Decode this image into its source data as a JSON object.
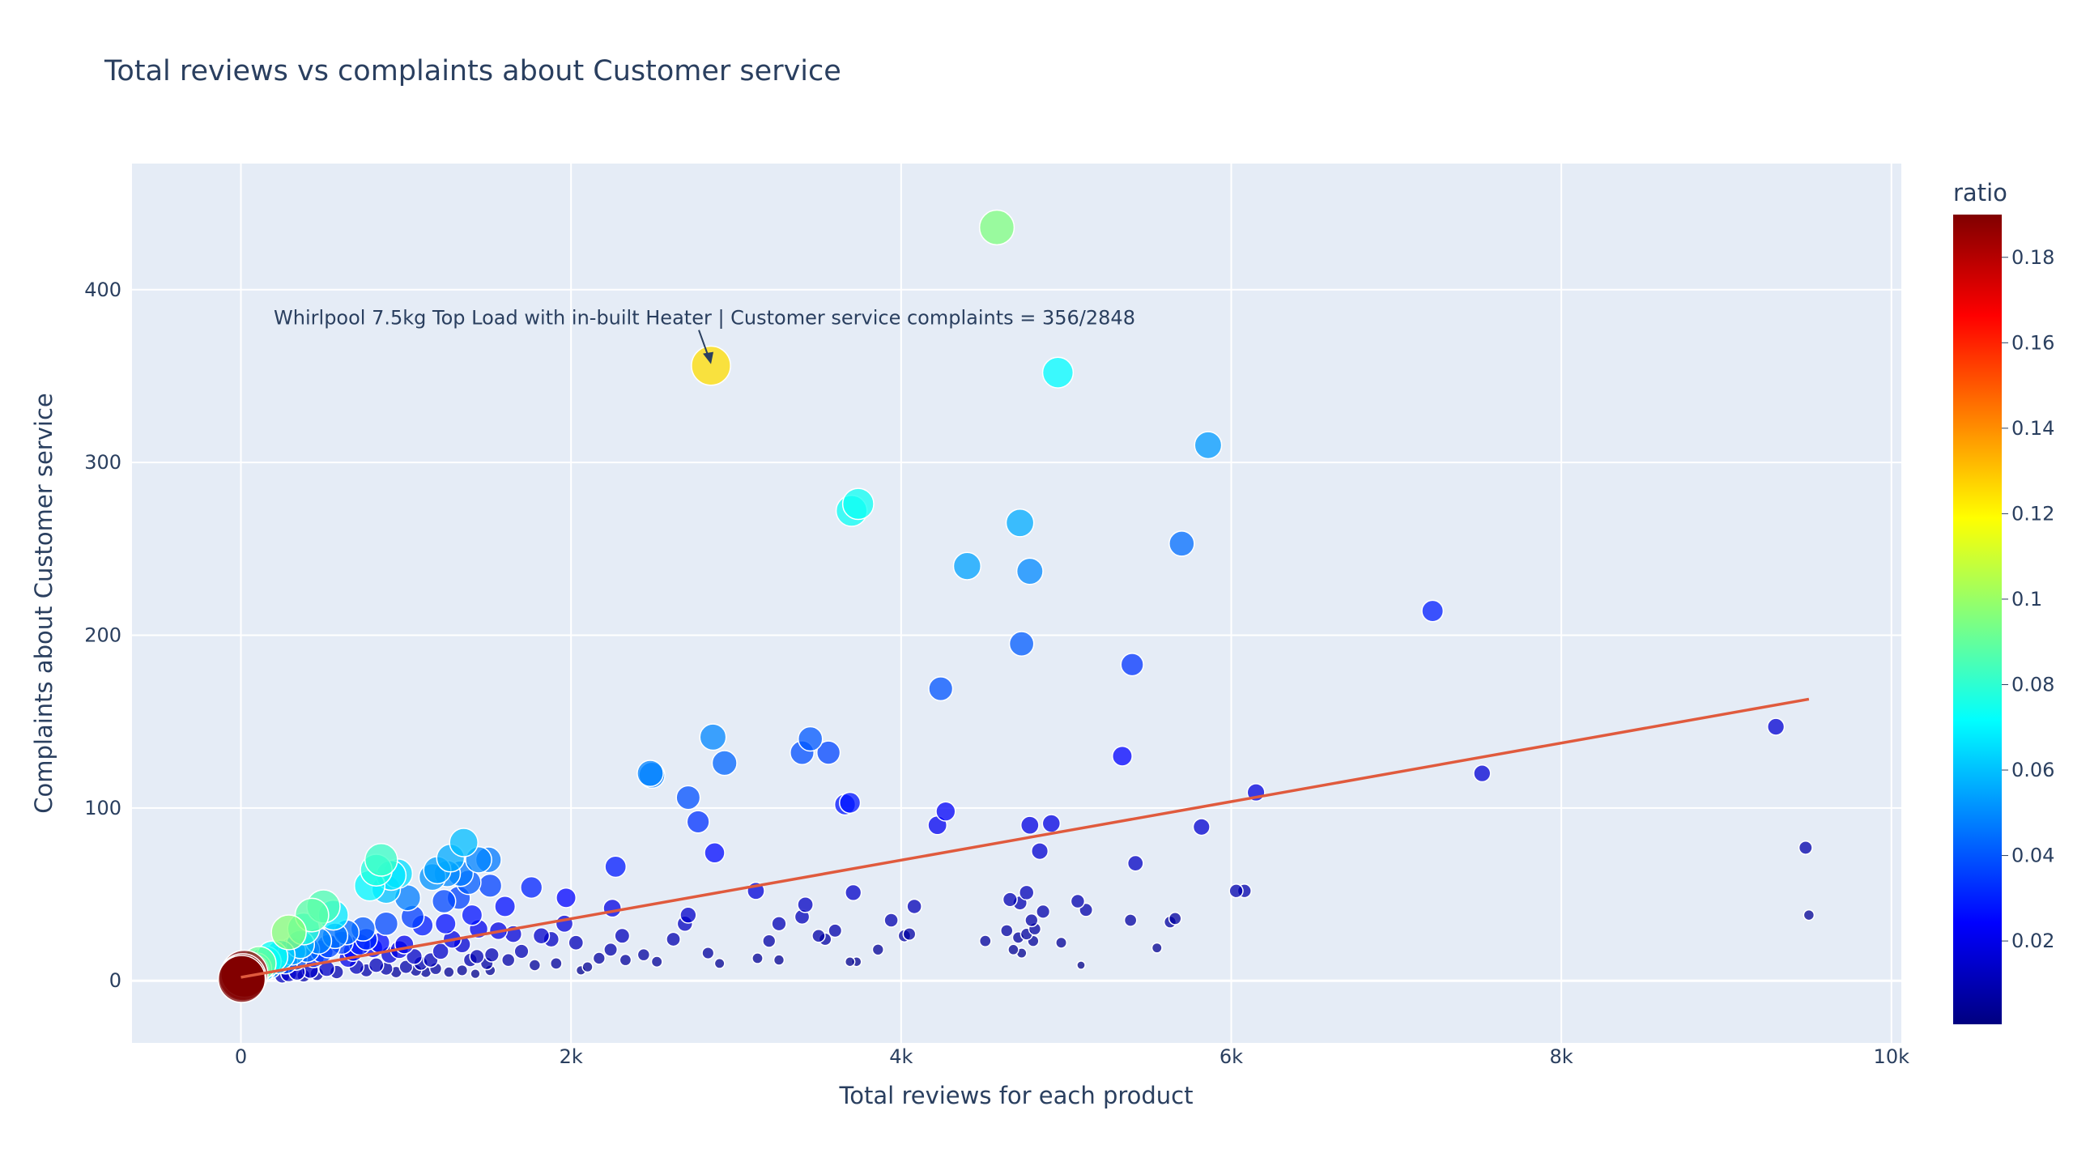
{
  "chart_data": {
    "type": "scatter",
    "title": "Total reviews vs complaints about Customer service",
    "xlabel": "Total reviews for each product",
    "ylabel": "Complaints about Customer service",
    "xlim": [
      -660,
      10060
    ],
    "ylim": [
      -36,
      473
    ],
    "x_ticks": [
      0,
      2000,
      4000,
      6000,
      8000,
      10000
    ],
    "x_tick_labels": [
      "0",
      "2k",
      "4k",
      "6k",
      "8k",
      "10k"
    ],
    "y_ticks": [
      0,
      100,
      200,
      300,
      400
    ],
    "y_tick_labels": [
      "0",
      "100",
      "200",
      "300",
      "400"
    ],
    "grid": true,
    "colorbar": {
      "title": "ratio",
      "range": [
        0.0005,
        0.19
      ],
      "ticks": [
        0.02,
        0.04,
        0.06,
        0.08,
        0.1,
        0.12,
        0.14,
        0.16,
        0.18
      ],
      "tick_labels": [
        "0.02",
        "0.04",
        "0.06",
        "0.08",
        "0.1",
        "0.12",
        "0.14",
        "0.16",
        "0.18"
      ],
      "colorscale": "Jet"
    },
    "annotation": {
      "text": "Whirlpool 7.5kg Top Load with in-built Heater | Customer service complaints = 356/2848",
      "x": 2848,
      "y": 356
    },
    "trendline": {
      "x": [
        0,
        9500
      ],
      "y": [
        2,
        163
      ],
      "color": "#e05a3d"
    },
    "points": [
      [
        4580,
        436
      ],
      [
        2848,
        356
      ],
      [
        4950,
        352
      ],
      [
        5860,
        310
      ],
      [
        3740,
        276
      ],
      [
        3700,
        272
      ],
      [
        5700,
        253
      ],
      [
        4720,
        265
      ],
      [
        4400,
        240
      ],
      [
        4780,
        237
      ],
      [
        7220,
        214
      ],
      [
        4730,
        195
      ],
      [
        5400,
        183
      ],
      [
        4240,
        169
      ],
      [
        2860,
        141
      ],
      [
        3450,
        140
      ],
      [
        3400,
        132
      ],
      [
        3560,
        132
      ],
      [
        2930,
        126
      ],
      [
        5340,
        130
      ],
      [
        2480,
        120
      ],
      [
        2490,
        119
      ],
      [
        2710,
        106
      ],
      [
        3690,
        103
      ],
      [
        3660,
        102
      ],
      [
        2770,
        92
      ],
      [
        4270,
        98
      ],
      [
        4220,
        90
      ],
      [
        4780,
        90
      ],
      [
        4910,
        91
      ],
      [
        9300,
        147
      ],
      [
        7520,
        120
      ],
      [
        6150,
        109
      ],
      [
        5820,
        89
      ],
      [
        2870,
        74
      ],
      [
        4840,
        75
      ],
      [
        5420,
        68
      ],
      [
        9480,
        77
      ],
      [
        2270,
        66
      ],
      [
        1970,
        48
      ],
      [
        1760,
        54
      ],
      [
        1600,
        43
      ],
      [
        1350,
        80
      ],
      [
        1270,
        71
      ],
      [
        1500,
        70
      ],
      [
        1440,
        70
      ],
      [
        1330,
        62
      ],
      [
        1250,
        62
      ],
      [
        1190,
        64
      ],
      [
        1160,
        60
      ],
      [
        1380,
        57
      ],
      [
        1510,
        55
      ],
      [
        1230,
        46
      ],
      [
        1320,
        48
      ],
      [
        850,
        70
      ],
      [
        820,
        64
      ],
      [
        950,
        62
      ],
      [
        910,
        61
      ],
      [
        780,
        55
      ],
      [
        880,
        53
      ],
      [
        1010,
        48
      ],
      [
        500,
        43
      ],
      [
        560,
        38
      ],
      [
        430,
        38
      ],
      [
        290,
        28
      ],
      [
        380,
        30
      ],
      [
        640,
        28
      ],
      [
        740,
        30
      ],
      [
        880,
        33
      ],
      [
        1040,
        37
      ],
      [
        1100,
        32
      ],
      [
        1240,
        33
      ],
      [
        1400,
        38
      ],
      [
        1440,
        30
      ],
      [
        1560,
        29
      ],
      [
        1650,
        27
      ],
      [
        1820,
        26
      ],
      [
        1880,
        24
      ],
      [
        1960,
        33
      ],
      [
        2030,
        22
      ],
      [
        2250,
        42
      ],
      [
        2310,
        26
      ],
      [
        2710,
        38
      ],
      [
        2690,
        33
      ],
      [
        3120,
        52
      ],
      [
        3260,
        33
      ],
      [
        3420,
        44
      ],
      [
        3400,
        37
      ],
      [
        3710,
        51
      ],
      [
        4080,
        43
      ],
      [
        3940,
        35
      ],
      [
        4660,
        47
      ],
      [
        4760,
        51
      ],
      [
        4720,
        45
      ],
      [
        4860,
        40
      ],
      [
        5070,
        46
      ],
      [
        5120,
        41
      ],
      [
        6030,
        52
      ],
      [
        6080,
        52
      ],
      [
        5390,
        35
      ],
      [
        5660,
        36
      ],
      [
        5630,
        34
      ],
      [
        4790,
        35
      ],
      [
        4810,
        30
      ],
      [
        4760,
        27
      ],
      [
        4640,
        29
      ],
      [
        4710,
        25
      ],
      [
        4800,
        23
      ],
      [
        4680,
        18
      ],
      [
        4730,
        16
      ],
      [
        4510,
        23
      ],
      [
        4050,
        27
      ],
      [
        4020,
        26
      ],
      [
        3600,
        29
      ],
      [
        3500,
        26
      ],
      [
        3540,
        24
      ],
      [
        3200,
        23
      ],
      [
        3130,
        13
      ],
      [
        2620,
        24
      ],
      [
        2520,
        11
      ],
      [
        2440,
        15
      ],
      [
        2330,
        12
      ],
      [
        2240,
        18
      ],
      [
        2170,
        13
      ],
      [
        2100,
        8
      ],
      [
        2900,
        10
      ],
      [
        2830,
        16
      ],
      [
        3260,
        12
      ],
      [
        3690,
        11
      ],
      [
        3730,
        11
      ],
      [
        3860,
        18
      ],
      [
        4970,
        22
      ],
      [
        5090,
        9
      ],
      [
        5550,
        19
      ],
      [
        9500,
        38
      ],
      [
        1700,
        17
      ],
      [
        1620,
        12
      ],
      [
        1520,
        15
      ],
      [
        1490,
        10
      ],
      [
        1430,
        14
      ],
      [
        1390,
        12
      ],
      [
        1340,
        21
      ],
      [
        1280,
        24
      ],
      [
        1210,
        17
      ],
      [
        1150,
        12
      ],
      [
        1090,
        10
      ],
      [
        1050,
        14
      ],
      [
        990,
        21
      ],
      [
        960,
        18
      ],
      [
        900,
        15
      ],
      [
        840,
        22
      ],
      [
        800,
        19
      ],
      [
        760,
        24
      ],
      [
        720,
        21
      ],
      [
        680,
        17
      ],
      [
        650,
        13
      ],
      [
        610,
        22
      ],
      [
        570,
        26
      ],
      [
        530,
        20
      ],
      [
        490,
        17
      ],
      [
        470,
        23
      ],
      [
        440,
        14
      ],
      [
        400,
        18
      ],
      [
        360,
        21
      ],
      [
        330,
        13
      ],
      [
        310,
        17
      ],
      [
        270,
        11
      ],
      [
        240,
        15
      ],
      [
        220,
        12
      ],
      [
        190,
        14
      ],
      [
        170,
        9
      ],
      [
        150,
        11
      ],
      [
        130,
        8
      ],
      [
        110,
        10
      ],
      [
        90,
        7
      ],
      [
        70,
        6
      ],
      [
        50,
        5
      ],
      [
        30,
        4
      ],
      [
        20,
        3
      ],
      [
        10,
        2
      ],
      [
        700,
        8
      ],
      [
        760,
        6
      ],
      [
        820,
        9
      ],
      [
        880,
        7
      ],
      [
        940,
        5
      ],
      [
        1000,
        8
      ],
      [
        1060,
        6
      ],
      [
        1120,
        5
      ],
      [
        1180,
        7
      ],
      [
        1260,
        5
      ],
      [
        1340,
        6
      ],
      [
        1420,
        4
      ],
      [
        1510,
        6
      ],
      [
        1780,
        9
      ],
      [
        1910,
        10
      ],
      [
        2060,
        6
      ],
      [
        580,
        5
      ],
      [
        520,
        7
      ],
      [
        460,
        4
      ],
      [
        420,
        6
      ],
      [
        380,
        3
      ],
      [
        340,
        5
      ],
      [
        290,
        4
      ],
      [
        250,
        3
      ],
      [
        21,
        4
      ],
      [
        12,
        2
      ],
      [
        5,
        1
      ]
    ]
  }
}
